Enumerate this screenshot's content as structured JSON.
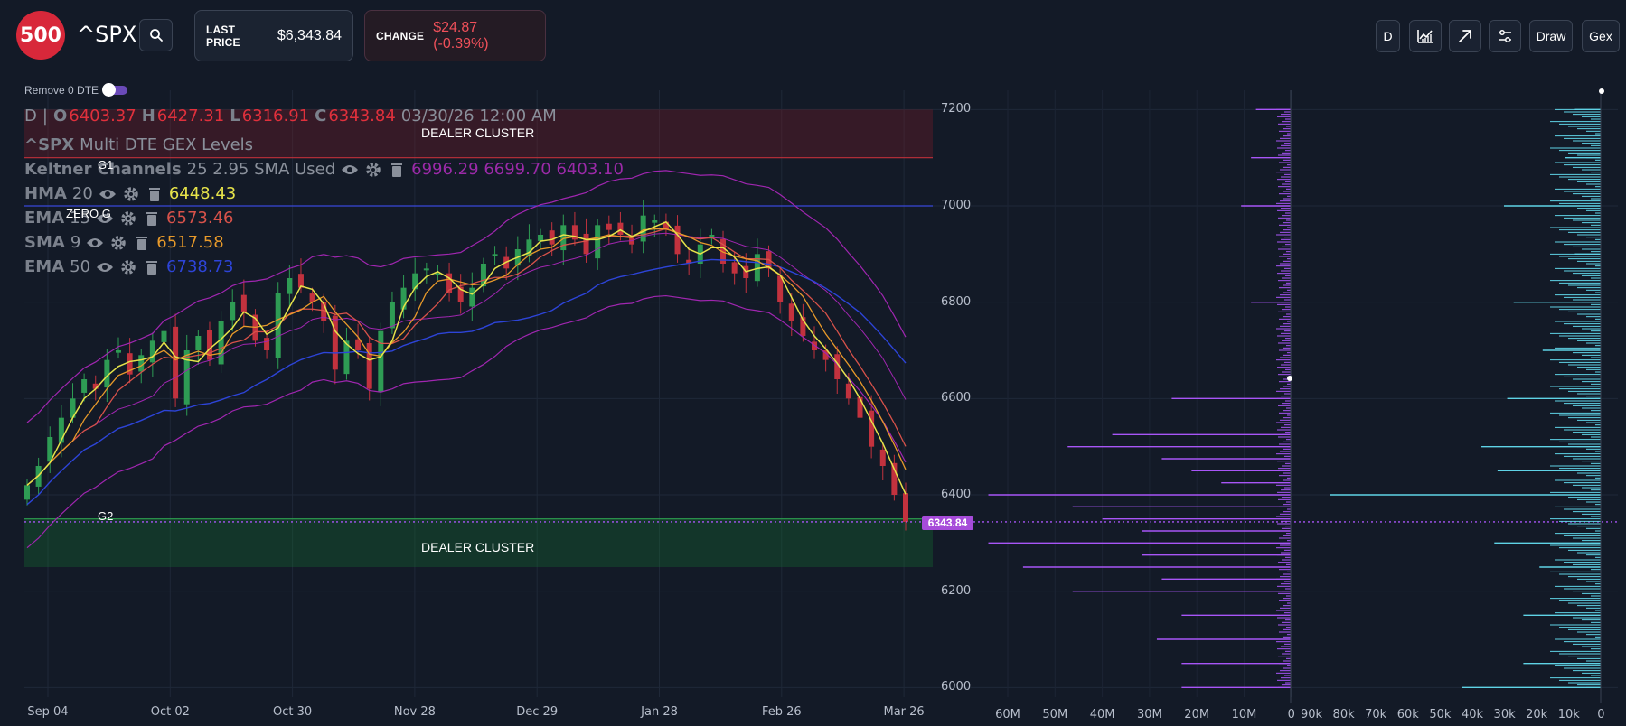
{
  "header": {
    "logo_text": "500",
    "ticker": "^SPX",
    "last_price_label": "LAST PRICE",
    "last_price_value": "$6,343.84",
    "change_label": "CHANGE",
    "change_value": "$24.87 (-0.39%)",
    "toolbar": {
      "interval_label": "D",
      "draw_label": "Draw",
      "gex_label": "Gex"
    }
  },
  "controls": {
    "remove_0dte_label": "Remove 0 DTE"
  },
  "legend": {
    "ohlc": {
      "interval": "D",
      "o_label": "O",
      "o_value": "6403.37",
      "h_label": "H",
      "h_value": "6427.31",
      "l_label": "L",
      "l_value": "6316.91",
      "c_label": "C",
      "c_value": "6343.84",
      "datetime": "03/30/26 12:00 AM"
    },
    "gex_title_sym": "^SPX",
    "gex_title_rest": "Multi DTE GEX Levels",
    "keltner": {
      "name": "Keltner Channels",
      "params": "25 2.95 SMA Used",
      "values": "6996.29 6699.70 6403.10"
    },
    "hma": {
      "name": "HMA",
      "period": "20",
      "value": "6448.43"
    },
    "ema15": {
      "name": "EMA",
      "period": "15",
      "value": "6573.46"
    },
    "sma9": {
      "name": "SMA",
      "period": "9",
      "value": "6517.58"
    },
    "ema50": {
      "name": "EMA",
      "period": "50",
      "value": "6738.73"
    }
  },
  "annotations": {
    "top_cluster": "DEALER CLUSTER",
    "bottom_cluster": "DEALER CLUSTER",
    "g1": "G1",
    "zero_g": "ZERO G",
    "g2": "G2",
    "current_price_tag": "6343.84"
  },
  "colors": {
    "up_candle": "#2e9c54",
    "down_candle": "#c2323e",
    "keltner": "#a026b0",
    "hma": "#e6e34a",
    "ema15": "#d8524a",
    "sma9": "#e89a2a",
    "ema50": "#2d44d8",
    "gex_put": "#a855f7",
    "gex_call": "#5fd3e6"
  },
  "chart_data": [
    {
      "type": "candlestick",
      "title": "^SPX Multi DTE GEX Levels",
      "x_ticks": [
        "Sep 04",
        "Oct 02",
        "Oct 30",
        "Nov 28",
        "Dec 29",
        "Jan 28",
        "Feb 26",
        "Mar 26"
      ],
      "y_ticks": [
        6000,
        6200,
        6400,
        6600,
        6800,
        7000,
        7200
      ],
      "ylim": [
        5980,
        7240
      ],
      "close_series_approx": [
        6420,
        6460,
        6520,
        6560,
        6600,
        6640,
        6620,
        6680,
        6700,
        6650,
        6690,
        6720,
        6740,
        6600,
        6700,
        6730,
        6680,
        6760,
        6800,
        6780,
        6720,
        6700,
        6820,
        6850,
        6830,
        6800,
        6760,
        6660,
        6720,
        6700,
        6620,
        6740,
        6800,
        6830,
        6860,
        6870,
        6860,
        6820,
        6800,
        6830,
        6880,
        6900,
        6870,
        6910,
        6930,
        6940,
        6920,
        6960,
        6930,
        6900,
        6960,
        6950,
        6940,
        6920,
        6980,
        6970,
        6950,
        6900,
        6880,
        6920,
        6940,
        6880,
        6860,
        6850,
        6900,
        6870,
        6800,
        6760,
        6730,
        6700,
        6680,
        6640,
        6600,
        6560,
        6500,
        6460,
        6400,
        6343.84
      ],
      "levels": [
        {
          "name": "G1",
          "value": 7100
        },
        {
          "name": "ZERO G",
          "value": 7000
        },
        {
          "name": "G2",
          "value": 6350
        }
      ],
      "zones": [
        {
          "label": "DEALER CLUSTER",
          "from": 7100,
          "to": 7200
        },
        {
          "label": "DEALER CLUSTER",
          "from": 6250,
          "to": 6350
        }
      ],
      "last_price": 6343.84
    },
    {
      "type": "bar",
      "title": "",
      "orientation": "horizontal",
      "series": [
        {
          "name": "",
          "side": "left"
        },
        {
          "name": "",
          "side": "right"
        }
      ],
      "x_ticks_left": [
        "60M",
        "50M",
        "40M",
        "30M",
        "20M",
        "10M",
        "0"
      ],
      "x_ticks_right": [
        "90k",
        "80k",
        "70k",
        "60k",
        "50k",
        "40k",
        "30k",
        "20k",
        "10k",
        "0"
      ],
      "y_range": [
        5980,
        7240
      ],
      "left_bars": [
        {
          "strike": 7200,
          "value": 7
        },
        {
          "strike": 7100,
          "value": 8
        },
        {
          "strike": 7000,
          "value": 10
        },
        {
          "strike": 6800,
          "value": 8
        },
        {
          "strike": 6600,
          "value": 24
        },
        {
          "strike": 6525,
          "value": 36
        },
        {
          "strike": 6500,
          "value": 45
        },
        {
          "strike": 6475,
          "value": 26
        },
        {
          "strike": 6450,
          "value": 20
        },
        {
          "strike": 6425,
          "value": 14
        },
        {
          "strike": 6400,
          "value": 61
        },
        {
          "strike": 6375,
          "value": 44
        },
        {
          "strike": 6350,
          "value": 38
        },
        {
          "strike": 6325,
          "value": 30
        },
        {
          "strike": 6300,
          "value": 61
        },
        {
          "strike": 6275,
          "value": 30
        },
        {
          "strike": 6250,
          "value": 54
        },
        {
          "strike": 6225,
          "value": 26
        },
        {
          "strike": 6200,
          "value": 44
        },
        {
          "strike": 6150,
          "value": 22
        },
        {
          "strike": 6100,
          "value": 27
        },
        {
          "strike": 6050,
          "value": 22
        },
        {
          "strike": 6000,
          "value": 22
        }
      ],
      "right_bars": [
        {
          "strike": 7200,
          "value": 8
        },
        {
          "strike": 7100,
          "value": 11
        },
        {
          "strike": 7000,
          "value": 30
        },
        {
          "strike": 6900,
          "value": 8
        },
        {
          "strike": 6800,
          "value": 27
        },
        {
          "strike": 6700,
          "value": 18
        },
        {
          "strike": 6600,
          "value": 29
        },
        {
          "strike": 6500,
          "value": 37
        },
        {
          "strike": 6450,
          "value": 32
        },
        {
          "strike": 6400,
          "value": 84
        },
        {
          "strike": 6300,
          "value": 33
        },
        {
          "strike": 6250,
          "value": 19
        },
        {
          "strike": 6150,
          "value": 24
        },
        {
          "strike": 6050,
          "value": 24
        },
        {
          "strike": 6000,
          "value": 43
        }
      ]
    }
  ]
}
